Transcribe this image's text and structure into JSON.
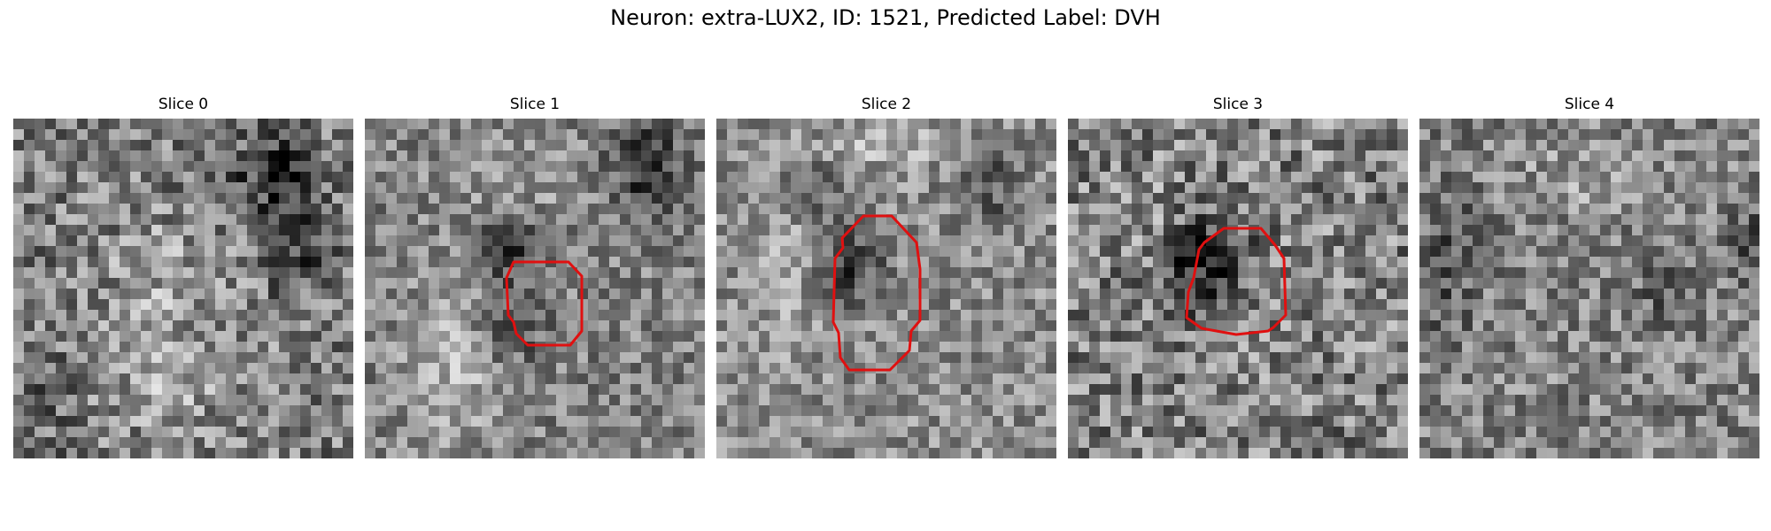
{
  "title": "Neuron: extra-LUX2, ID: 1521, Predicted Label: DVH",
  "outline_color": "#e01010",
  "slices": [
    {
      "label": "Slice 0",
      "has_outline": false
    },
    {
      "label": "Slice 1",
      "has_outline": true
    },
    {
      "label": "Slice 2",
      "has_outline": true
    },
    {
      "label": "Slice 3",
      "has_outline": true
    },
    {
      "label": "Slice 4",
      "has_outline": false
    }
  ]
}
